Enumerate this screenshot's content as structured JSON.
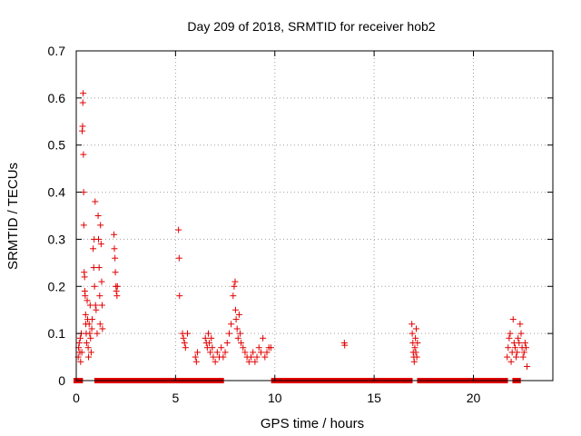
{
  "chart_data": {
    "type": "scatter",
    "title": "Day 209 of 2018, SRMTID for receiver hob2",
    "xlabel": "GPS time / hours",
    "ylabel": "SRMTID / TECUs",
    "xlim": [
      0,
      24
    ],
    "ylim": [
      0,
      0.7
    ],
    "xticks": [
      "0",
      "5",
      "10",
      "15",
      "20"
    ],
    "xtick_values": [
      0,
      5,
      10,
      15,
      20
    ],
    "yticks": [
      "0",
      "0.1",
      "0.2",
      "0.3",
      "0.4",
      "0.5",
      "0.6",
      "0.7"
    ],
    "ytick_values": [
      0,
      0.1,
      0.2,
      0.3,
      0.4,
      0.5,
      0.6,
      0.7
    ],
    "grid": true,
    "marker": "+",
    "color": "#e00000",
    "series": [
      {
        "name": "hob2",
        "points": [
          [
            0.1,
            0.05
          ],
          [
            0.12,
            0.07
          ],
          [
            0.15,
            0.08
          ],
          [
            0.18,
            0.06
          ],
          [
            0.2,
            0.09
          ],
          [
            0.22,
            0.04
          ],
          [
            0.25,
            0.1
          ],
          [
            0.28,
            0.06
          ],
          [
            0.3,
            0.53
          ],
          [
            0.32,
            0.54
          ],
          [
            0.33,
            0.59
          ],
          [
            0.35,
            0.61
          ],
          [
            0.36,
            0.48
          ],
          [
            0.37,
            0.4
          ],
          [
            0.38,
            0.33
          ],
          [
            0.4,
            0.23
          ],
          [
            0.42,
            0.22
          ],
          [
            0.43,
            0.19
          ],
          [
            0.45,
            0.18
          ],
          [
            0.47,
            0.14
          ],
          [
            0.48,
            0.12
          ],
          [
            0.5,
            0.1
          ],
          [
            0.52,
            0.08
          ],
          [
            0.55,
            0.17
          ],
          [
            0.57,
            0.13
          ],
          [
            0.6,
            0.07
          ],
          [
            0.62,
            0.05
          ],
          [
            0.65,
            0.12
          ],
          [
            0.68,
            0.1
          ],
          [
            0.7,
            0.16
          ],
          [
            0.72,
            0.09
          ],
          [
            0.75,
            0.06
          ],
          [
            0.78,
            0.11
          ],
          [
            0.8,
            0.13
          ],
          [
            0.85,
            0.28
          ],
          [
            0.88,
            0.24
          ],
          [
            0.9,
            0.3
          ],
          [
            0.92,
            0.2
          ],
          [
            0.95,
            0.38
          ],
          [
            0.97,
            0.16
          ],
          [
            1.0,
            0.15
          ],
          [
            1.05,
            0.1
          ],
          [
            1.1,
            0.35
          ],
          [
            1.12,
            0.3
          ],
          [
            1.15,
            0.24
          ],
          [
            1.18,
            0.18
          ],
          [
            1.2,
            0.12
          ],
          [
            1.22,
            0.33
          ],
          [
            1.25,
            0.29
          ],
          [
            1.28,
            0.21
          ],
          [
            1.3,
            0.16
          ],
          [
            1.32,
            0.11
          ],
          [
            1.9,
            0.31
          ],
          [
            1.92,
            0.28
          ],
          [
            1.95,
            0.26
          ],
          [
            1.97,
            0.23
          ],
          [
            2.0,
            0.2
          ],
          [
            2.02,
            0.19
          ],
          [
            2.05,
            0.18
          ],
          [
            2.07,
            0.2
          ],
          [
            5.15,
            0.32
          ],
          [
            5.18,
            0.26
          ],
          [
            5.2,
            0.18
          ],
          [
            5.35,
            0.1
          ],
          [
            5.4,
            0.09
          ],
          [
            5.45,
            0.08
          ],
          [
            5.5,
            0.07
          ],
          [
            5.6,
            0.1
          ],
          [
            6.0,
            0.05
          ],
          [
            6.05,
            0.04
          ],
          [
            6.1,
            0.06
          ],
          [
            6.5,
            0.09
          ],
          [
            6.55,
            0.08
          ],
          [
            6.6,
            0.07
          ],
          [
            6.65,
            0.1
          ],
          [
            6.7,
            0.08
          ],
          [
            6.75,
            0.06
          ],
          [
            6.8,
            0.09
          ],
          [
            6.85,
            0.07
          ],
          [
            6.9,
            0.05
          ],
          [
            7.0,
            0.04
          ],
          [
            7.1,
            0.06
          ],
          [
            7.2,
            0.05
          ],
          [
            7.3,
            0.07
          ],
          [
            7.4,
            0.05
          ],
          [
            7.5,
            0.06
          ],
          [
            7.6,
            0.08
          ],
          [
            7.7,
            0.1
          ],
          [
            7.8,
            0.12
          ],
          [
            7.9,
            0.18
          ],
          [
            7.95,
            0.2
          ],
          [
            8.0,
            0.21
          ],
          [
            8.02,
            0.15
          ],
          [
            8.05,
            0.13
          ],
          [
            8.1,
            0.11
          ],
          [
            8.15,
            0.09
          ],
          [
            8.2,
            0.14
          ],
          [
            8.25,
            0.1
          ],
          [
            8.3,
            0.08
          ],
          [
            8.4,
            0.07
          ],
          [
            8.5,
            0.06
          ],
          [
            8.6,
            0.05
          ],
          [
            8.7,
            0.04
          ],
          [
            8.8,
            0.05
          ],
          [
            8.9,
            0.06
          ],
          [
            9.0,
            0.04
          ],
          [
            9.1,
            0.05
          ],
          [
            9.2,
            0.07
          ],
          [
            9.3,
            0.06
          ],
          [
            9.4,
            0.09
          ],
          [
            9.5,
            0.05
          ],
          [
            9.6,
            0.06
          ],
          [
            9.7,
            0.07
          ],
          [
            9.8,
            0.07
          ],
          [
            13.5,
            0.08
          ],
          [
            13.52,
            0.075
          ],
          [
            16.9,
            0.12
          ],
          [
            16.92,
            0.1
          ],
          [
            16.95,
            0.08
          ],
          [
            16.97,
            0.06
          ],
          [
            17.0,
            0.05
          ],
          [
            17.02,
            0.04
          ],
          [
            17.05,
            0.07
          ],
          [
            17.08,
            0.09
          ],
          [
            17.1,
            0.06
          ],
          [
            17.12,
            0.11
          ],
          [
            17.15,
            0.05
          ],
          [
            17.18,
            0.08
          ],
          [
            21.7,
            0.05
          ],
          [
            21.75,
            0.07
          ],
          [
            21.8,
            0.09
          ],
          [
            21.85,
            0.1
          ],
          [
            21.9,
            0.04
          ],
          [
            21.95,
            0.06
          ],
          [
            22.0,
            0.13
          ],
          [
            22.05,
            0.08
          ],
          [
            22.1,
            0.07
          ],
          [
            22.15,
            0.05
          ],
          [
            22.2,
            0.06
          ],
          [
            22.25,
            0.09
          ],
          [
            22.3,
            0.08
          ],
          [
            22.35,
            0.12
          ],
          [
            22.4,
            0.1
          ],
          [
            22.45,
            0.07
          ],
          [
            22.5,
            0.05
          ],
          [
            22.55,
            0.06
          ],
          [
            22.6,
            0.08
          ],
          [
            22.65,
            0.07
          ],
          [
            22.7,
            0.03
          ]
        ],
        "zero_ranges": [
          [
            0.0,
            0.2
          ],
          [
            1.05,
            1.15
          ],
          [
            1.4,
            1.95
          ],
          [
            2.05,
            5.1
          ],
          [
            5.3,
            7.0
          ],
          [
            7.1,
            7.3
          ],
          [
            9.95,
            16.8
          ],
          [
            17.3,
            21.6
          ],
          [
            22.1,
            22.25
          ]
        ]
      }
    ]
  }
}
